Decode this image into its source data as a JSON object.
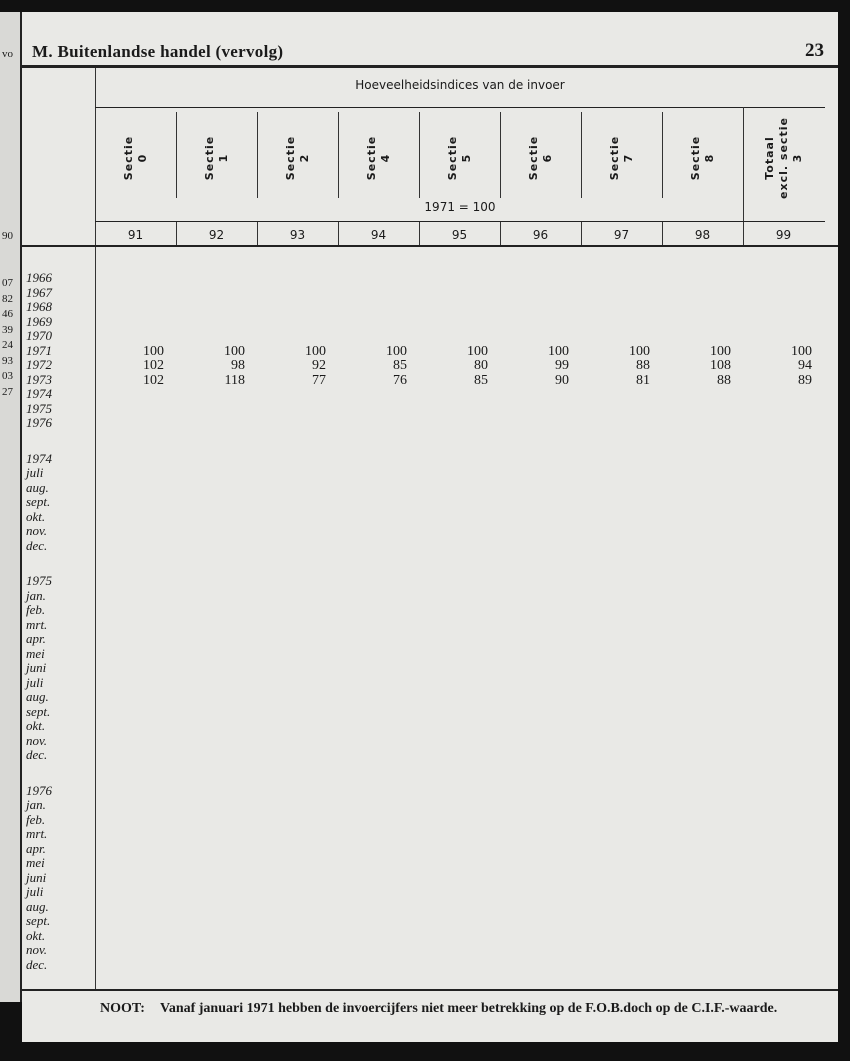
{
  "header": {
    "title": "M.  Buitenlandse handel (vervolg)",
    "page_number": "23"
  },
  "table": {
    "group_header": "Hoeveelheidsindices van de invoer",
    "columns": [
      {
        "label": "Sectie\n0",
        "code": "91"
      },
      {
        "label": "Sectie\n1",
        "code": "92"
      },
      {
        "label": "Sectie\n2",
        "code": "93"
      },
      {
        "label": "Sectie\n4",
        "code": "94"
      },
      {
        "label": "Sectie\n5",
        "code": "95"
      },
      {
        "label": "Sectie\n6",
        "code": "96"
      },
      {
        "label": "Sectie\n7",
        "code": "97"
      },
      {
        "label": "Sectie\n8",
        "code": "98"
      },
      {
        "label": "Totaal\nexcl. sectie\n3",
        "code": "99"
      }
    ],
    "base": "1971 = 100",
    "stub_groups": [
      [
        "1966",
        "1967",
        "1968",
        "1969",
        "1970",
        "1971",
        "1972",
        "1973",
        "1974",
        "1975",
        "1976"
      ],
      [
        "1974",
        "juli",
        "aug.",
        "sept.",
        "okt.",
        "nov.",
        "dec."
      ],
      [
        "1975",
        "jan.",
        "feb.",
        "mrt.",
        "apr.",
        "mei",
        "juni",
        "juli",
        "aug.",
        "sept.",
        "okt.",
        "nov.",
        "dec."
      ],
      [
        "1976",
        "jan.",
        "feb.",
        "mrt.",
        "apr.",
        "mei",
        "juni",
        "juli",
        "aug.",
        "sept.",
        "okt.",
        "nov.",
        "dec."
      ]
    ],
    "rows": [
      {
        "stub": "1971",
        "values": [
          "100",
          "100",
          "100",
          "100",
          "100",
          "100",
          "100",
          "100",
          "100"
        ]
      },
      {
        "stub": "1972",
        "values": [
          "102",
          "98",
          "92",
          "85",
          "80",
          "99",
          "88",
          "108",
          "94"
        ]
      },
      {
        "stub": "1973",
        "values": [
          "102",
          "118",
          "77",
          "76",
          "85",
          "90",
          "81",
          "88",
          "89"
        ]
      }
    ]
  },
  "prev_page_fragments": [
    "vo",
    "90",
    "07",
    "82",
    "46",
    "39",
    "24",
    "93",
    "03",
    "27"
  ],
  "note": {
    "label": "NOOT:",
    "text": "Vanaf januari 1971 hebben de invoercijfers niet meer betrekking op de F.O.B.doch op de C.I.F.-waarde."
  }
}
